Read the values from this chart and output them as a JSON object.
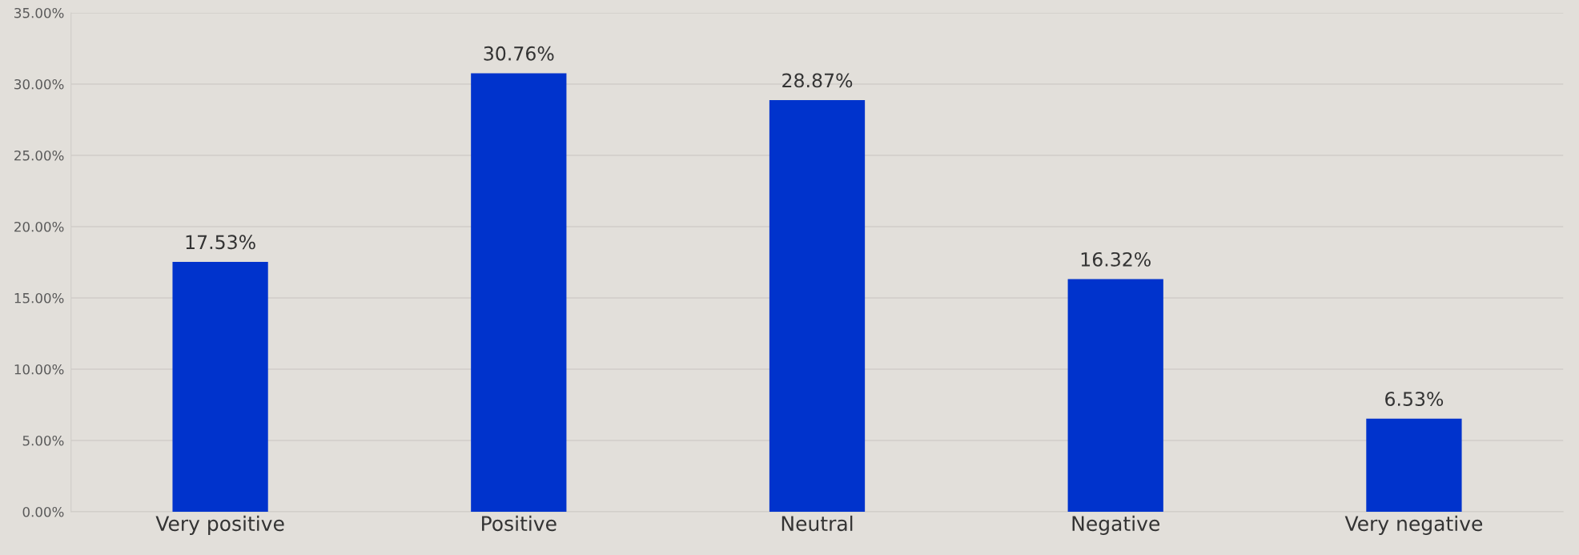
{
  "chart_data": {
    "type": "bar",
    "categories": [
      "Very positive",
      "Positive",
      "Neutral",
      "Negative",
      "Very negative"
    ],
    "values": [
      17.53,
      30.76,
      28.87,
      16.32,
      6.53
    ],
    "value_labels": [
      "17.53%",
      "30.76%",
      "28.87%",
      "16.32%",
      "6.53%"
    ],
    "color": "#0033cc",
    "ylim": [
      0,
      35
    ],
    "yticks": [
      {
        "value": 0,
        "label": "0.00%"
      },
      {
        "value": 5,
        "label": "5.00%"
      },
      {
        "value": 10,
        "label": "10.00%"
      },
      {
        "value": 15,
        "label": "15.00%"
      },
      {
        "value": 20,
        "label": "20.00%"
      },
      {
        "value": 25,
        "label": "25.00%"
      },
      {
        "value": 30,
        "label": "30.00%"
      },
      {
        "value": 35,
        "label": "35.00%"
      }
    ],
    "grid": "y"
  }
}
